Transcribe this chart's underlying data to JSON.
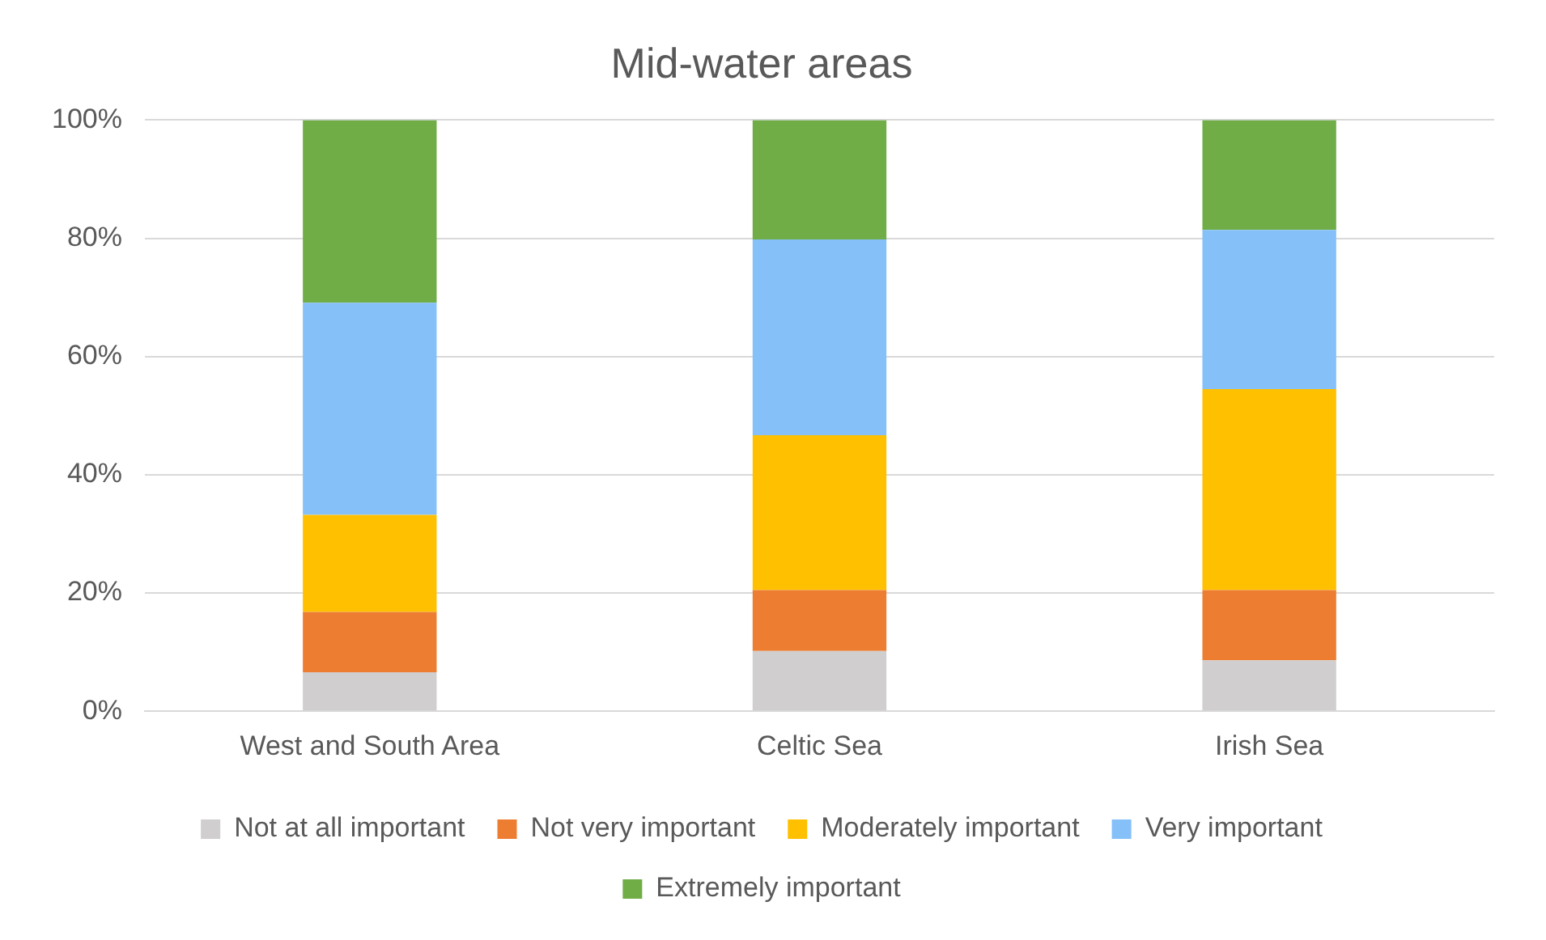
{
  "chart_data": {
    "type": "bar",
    "title": "Mid-water areas",
    "categories": [
      "West and South Area",
      "Celtic Sea",
      "Irish Sea"
    ],
    "stacked": true,
    "series": [
      {
        "name": "Not at all important",
        "color": "#d0cece",
        "values": [
          6.6,
          10.2,
          8.6
        ]
      },
      {
        "name": "Not very important",
        "color": "#ed7d31",
        "values": [
          10.2,
          10.3,
          11.9
        ]
      },
      {
        "name": "Moderately important",
        "color": "#ffc000",
        "values": [
          16.4,
          26.2,
          34.0
        ]
      },
      {
        "name": "Very important",
        "color": "#85c0f9",
        "values": [
          35.9,
          33.1,
          26.9
        ]
      },
      {
        "name": "Extremely important",
        "color": "#70ad47",
        "values": [
          30.9,
          20.2,
          18.6
        ]
      }
    ],
    "ylim": [
      0,
      100
    ],
    "yticks": [
      {
        "value": 0,
        "label": "0%"
      },
      {
        "value": 20,
        "label": "20%"
      },
      {
        "value": 40,
        "label": "40%"
      },
      {
        "value": 60,
        "label": "60%"
      },
      {
        "value": 80,
        "label": "80%"
      },
      {
        "value": 100,
        "label": "100%"
      }
    ],
    "grid": "y",
    "legend": "bottom"
  }
}
